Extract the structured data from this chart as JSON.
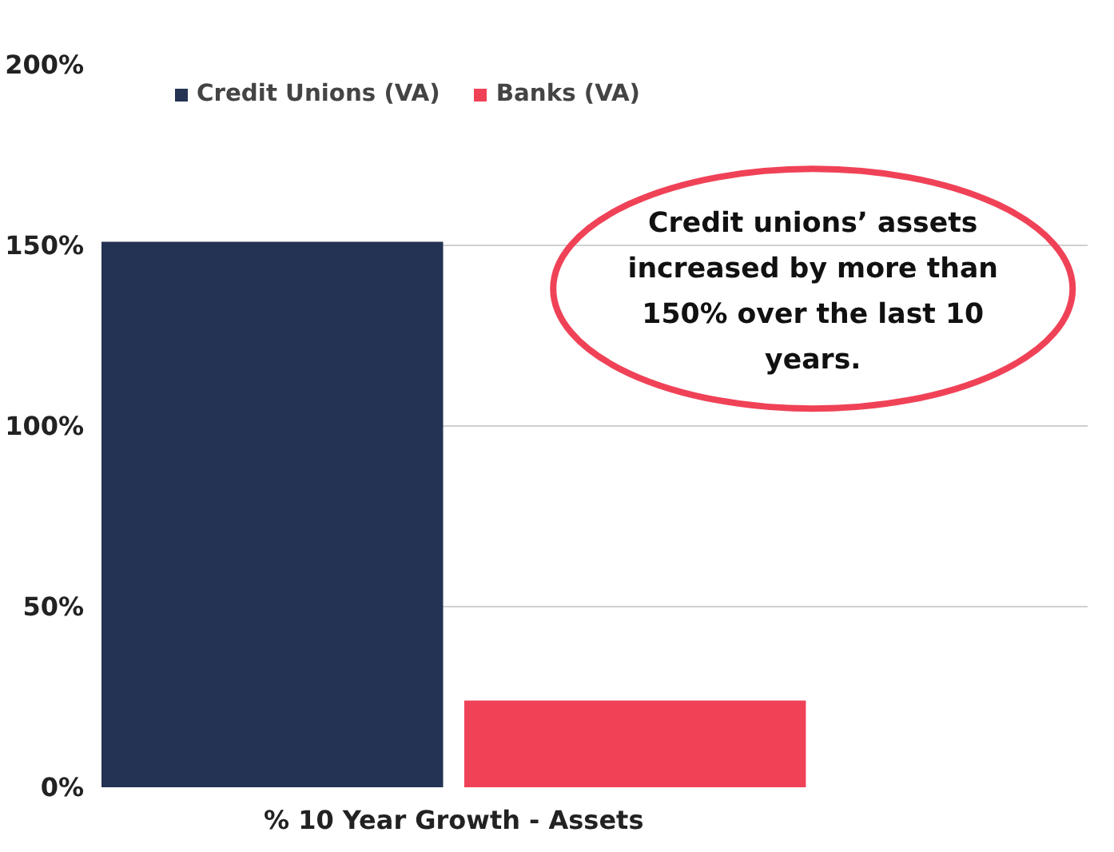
{
  "chart_data": {
    "type": "bar",
    "categories": [
      "% 10 Year Growth - Assets"
    ],
    "series": [
      {
        "name": "Credit Unions (VA)",
        "color": "#243353",
        "values": [
          151
        ]
      },
      {
        "name": "Banks (VA)",
        "color": "#f04257",
        "values": [
          24
        ]
      }
    ],
    "ylim": [
      0,
      200
    ],
    "yticks": [
      {
        "value": 0,
        "label": "0%"
      },
      {
        "value": 50,
        "label": "50%"
      },
      {
        "value": 100,
        "label": "100%"
      },
      {
        "value": 150,
        "label": "150%"
      },
      {
        "value": 200,
        "label": "200%"
      }
    ],
    "grid": "y",
    "legend": "top",
    "annotations": [
      "Credit unions’ assets increased by more than 150% over the last 10 years."
    ]
  }
}
